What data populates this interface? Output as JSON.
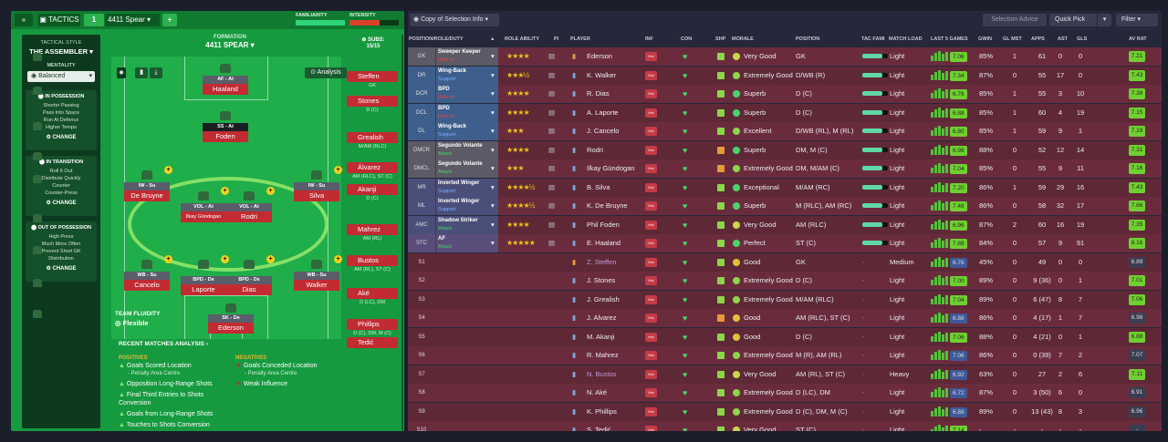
{
  "left": {
    "tactics_label": "TACTICS",
    "slot_number": "1",
    "tactic_name": "4411 Spear",
    "familiarity_label": "FAMILIARITY",
    "intensity_label": "INTENSITY",
    "tactical_style_label": "TACTICAL STYLE",
    "style_name": "THE ASSEMBLER",
    "mentality_label": "MENTALITY",
    "mentality_value": "Balanced",
    "formation_label": "FORMATION",
    "formation_value": "4411 SPEAR",
    "subs_label": "SUBS:",
    "subs_count": "15/15",
    "analysis_button": "Analysis",
    "change_label": "CHANGE",
    "sections": [
      {
        "title": "IN POSSESSION",
        "lines": [
          "Shorter Passing",
          "Pass Into Space",
          "Run At Defence",
          "Higher Tempo"
        ]
      },
      {
        "title": "IN TRANSITION",
        "lines": [
          "Roll It Out",
          "Distribute Quickly",
          "Counter",
          "Counter-Press"
        ]
      },
      {
        "title": "OUT OF POSSESSION",
        "lines": [
          "High Press",
          "Much More Often",
          "Prevent Short GK",
          "Distribution"
        ]
      }
    ],
    "fluidity_label": "TEAM FLUIDITY",
    "fluidity_value": "Flexible",
    "analysis_title": "RECENT MATCHES ANALYSIS",
    "positives_label": "POSITIVES",
    "negatives_label": "NEGATIVES",
    "positives": [
      {
        "text": "Goals Scored Location",
        "sub": "- Penalty Area Centre"
      },
      {
        "text": "Opposition Long-Range Shots",
        "sub": ""
      },
      {
        "text": "Final Third Entries to Shots Conversion",
        "sub": ""
      },
      {
        "text": "Goals from Long-Range Shots",
        "sub": ""
      },
      {
        "text": "Touches to Shots Conversion",
        "sub": ""
      }
    ],
    "negatives": [
      {
        "text": "Goals Conceded Location",
        "sub": "- Penalty Area Centre"
      },
      {
        "text": "Weak Influence",
        "sub": ""
      }
    ],
    "pitch_players": [
      {
        "role": "AF - At",
        "name": "Haaland"
      },
      {
        "role": "SS - At",
        "name": "Foden"
      },
      {
        "role": "IW - Su",
        "name": "De Bruyne"
      },
      {
        "role": "IW - Su",
        "name": "Silva"
      },
      {
        "role": "VOL - At",
        "name": "Ilkay Gündogan"
      },
      {
        "role": "VOL - At",
        "name": "Rodri"
      },
      {
        "role": "WB - Su",
        "name": "Cancelo"
      },
      {
        "role": "BPD - De",
        "name": "Laporte"
      },
      {
        "role": "BPD - De",
        "name": "Dias"
      },
      {
        "role": "WB - Su",
        "name": "Walker"
      },
      {
        "role": "SK - De",
        "name": "Ederson"
      }
    ],
    "subs": [
      {
        "name": "Steffen",
        "pos": "GK"
      },
      {
        "name": "Stones",
        "pos": "D (C)"
      },
      {
        "name": "Grealish",
        "pos": "M/AM (RLC)"
      },
      {
        "name": "Álvarez",
        "pos": "AM (RLC), ST (C)"
      },
      {
        "name": "Akanji",
        "pos": "D (C)"
      },
      {
        "name": "Mahrez",
        "pos": "AM (RL)"
      },
      {
        "name": "Bustos",
        "pos": "AM (RL), ST (C)"
      },
      {
        "name": "Aké",
        "pos": "D (LC), DM"
      },
      {
        "name": "Phillips",
        "pos": "D (C), DM, M (C)"
      },
      {
        "name": "Tedić",
        "pos": ""
      }
    ]
  },
  "right": {
    "view_label": "Copy of Selection Info",
    "selection_advice": "Selection Advice",
    "quick_pick": "Quick Pick",
    "filter": "Filter",
    "headers": [
      "POSITION/ROLE/DUTY",
      "ROLE ABILITY",
      "PI",
      "PLAYER",
      "INF",
      "CON",
      "SHP",
      "MORALE",
      "POSITION",
      "TAC FAMI",
      "MATCH LOAD",
      "LAST 5 GAMES",
      "GWIN",
      "GL MST",
      "APPS",
      "AST",
      "GLS",
      "AV RAT"
    ],
    "rows": [
      {
        "slot": "GK",
        "role": "Sweeper Keeper",
        "duty": "Defend",
        "stars": "★★★★",
        "player": "Ederson",
        "morale": "Very Good",
        "position": "GK",
        "fam": 80,
        "load": "Light",
        "rating": "7.06",
        "gwin": "85%",
        "glmst": "1",
        "apps": "61",
        "ast": "0",
        "gls": "0",
        "avr": "7.21"
      },
      {
        "slot": "DR",
        "role": "Wing-Back",
        "duty": "Support",
        "stars": "★★★½",
        "player": "K. Walker",
        "morale": "Extremely Good",
        "position": "D/WB (R)",
        "fam": 80,
        "load": "Light",
        "rating": "7.34",
        "gwin": "87%",
        "glmst": "0",
        "apps": "55",
        "ast": "17",
        "gls": "0",
        "avr": "7.43"
      },
      {
        "slot": "DCR",
        "role": "BPD",
        "duty": "Defend",
        "stars": "★★★★",
        "player": "R. Dias",
        "morale": "Superb",
        "position": "D (C)",
        "fam": 80,
        "load": "Light",
        "rating": "6.76",
        "gwin": "85%",
        "glmst": "1",
        "apps": "55",
        "ast": "3",
        "gls": "10",
        "avr": "7.38"
      },
      {
        "slot": "DCL",
        "role": "BPD",
        "duty": "Defend",
        "stars": "★★★★",
        "player": "A. Laporte",
        "morale": "Superb",
        "position": "D (C)",
        "fam": 80,
        "load": "Light",
        "rating": "6.88",
        "gwin": "85%",
        "glmst": "1",
        "apps": "60",
        "ast": "4",
        "gls": "19",
        "avr": "7.15"
      },
      {
        "slot": "DL",
        "role": "Wing-Back",
        "duty": "Support",
        "stars": "★★★",
        "player": "J. Cancelo",
        "morale": "Excellent",
        "position": "D/WB (RL), M (RL)",
        "fam": 80,
        "load": "Light",
        "rating": "6.80",
        "gwin": "85%",
        "glmst": "1",
        "apps": "59",
        "ast": "9",
        "gls": "1",
        "avr": "7.19"
      },
      {
        "slot": "DMCR",
        "role": "Segundo Volante",
        "duty": "Attack",
        "stars": "★★★★",
        "player": "Rodri",
        "morale": "Superb",
        "position": "DM, M (C)",
        "fam": 80,
        "load": "Light",
        "rating": "6.98",
        "gwin": "88%",
        "glmst": "0",
        "apps": "52",
        "ast": "12",
        "gls": "14",
        "avr": "7.31"
      },
      {
        "slot": "DMCL",
        "role": "Segundo Volante",
        "duty": "Attack",
        "stars": "★★★",
        "player": "Ilkay Gündogan",
        "morale": "Extremely Good",
        "position": "DM, M/AM (C)",
        "fam": 80,
        "load": "Light",
        "rating": "7.04",
        "gwin": "85%",
        "glmst": "0",
        "apps": "55",
        "ast": "9",
        "gls": "11",
        "avr": "7.16"
      },
      {
        "slot": "MR",
        "role": "Inverted Winger",
        "duty": "Support",
        "stars": "★★★★½",
        "player": "B. Silva",
        "morale": "Exceptional",
        "position": "M/AM (RC)",
        "fam": 80,
        "load": "Light",
        "rating": "7.20",
        "gwin": "86%",
        "glmst": "1",
        "apps": "59",
        "ast": "29",
        "gls": "16",
        "avr": "7.43"
      },
      {
        "slot": "ML",
        "role": "Inverted Winger",
        "duty": "Support",
        "stars": "★★★★½",
        "player": "K. De Bruyne",
        "morale": "Superb",
        "position": "M (RLC), AM (RC)",
        "fam": 80,
        "load": "Light",
        "rating": "7.48",
        "gwin": "86%",
        "glmst": "0",
        "apps": "58",
        "ast": "32",
        "gls": "17",
        "avr": "7.66"
      },
      {
        "slot": "AMC",
        "role": "Shadow Striker",
        "duty": "Attack",
        "stars": "★★★★",
        "player": "Phil Foden",
        "morale": "Very Good",
        "position": "AM (RLC)",
        "fam": 80,
        "load": "Light",
        "rating": "6.96",
        "gwin": "87%",
        "glmst": "2",
        "apps": "60",
        "ast": "16",
        "gls": "19",
        "avr": "7.35"
      },
      {
        "slot": "STC",
        "role": "AF",
        "duty": "Attack",
        "stars": "★★★★★",
        "player": "E. Haaland",
        "morale": "Perfect",
        "position": "ST (C)",
        "fam": 80,
        "load": "Light",
        "rating": "7.88",
        "gwin": "84%",
        "glmst": "0",
        "apps": "57",
        "ast": "9",
        "gls": "91",
        "avr": "8.16"
      },
      {
        "slot": "S1",
        "role": "",
        "duty": "",
        "stars": "",
        "player": "Z. Steffen",
        "morale": "Good",
        "position": "GK",
        "fam": 0,
        "load": "Medium",
        "rating": "6.76",
        "gwin": "45%",
        "glmst": "0",
        "apps": "49",
        "ast": "0",
        "gls": "0",
        "avr": "6.89"
      },
      {
        "slot": "S2",
        "role": "",
        "duty": "",
        "stars": "",
        "player": "J. Stones",
        "morale": "Extremely Good",
        "position": "D (C)",
        "fam": 0,
        "load": "Light",
        "rating": "7.00",
        "gwin": "89%",
        "glmst": "0",
        "apps": "9 (36)",
        "ast": "0",
        "gls": "1",
        "avr": "7.01"
      },
      {
        "slot": "S3",
        "role": "",
        "duty": "",
        "stars": "",
        "player": "J. Grealish",
        "morale": "Extremely Good",
        "position": "M/AM (RLC)",
        "fam": 0,
        "load": "Light",
        "rating": "7.04",
        "gwin": "89%",
        "glmst": "0",
        "apps": "6 (47)",
        "ast": "8",
        "gls": "7",
        "avr": "7.06"
      },
      {
        "slot": "S4",
        "role": "",
        "duty": "",
        "stars": "",
        "player": "J. Alvarez",
        "morale": "Good",
        "position": "AM (RLC), ST (C)",
        "fam": 0,
        "load": "Light",
        "rating": "6.88",
        "gwin": "86%",
        "glmst": "0",
        "apps": "4 (17)",
        "ast": "1",
        "gls": "7",
        "avr": "6.98"
      },
      {
        "slot": "S5",
        "role": "",
        "duty": "",
        "stars": "",
        "player": "M. Akanji",
        "morale": "Good",
        "position": "D (C)",
        "fam": 0,
        "load": "Light",
        "rating": "7.06",
        "gwin": "88%",
        "glmst": "0",
        "apps": "4 (21)",
        "ast": "0",
        "gls": "1",
        "avr": "6.88"
      },
      {
        "slot": "S6",
        "role": "",
        "duty": "",
        "stars": "",
        "player": "R. Mahrez",
        "morale": "Extremely Good",
        "position": "M (R), AM (RL)",
        "fam": 0,
        "load": "Light",
        "rating": "7.06",
        "gwin": "86%",
        "glmst": "0",
        "apps": "0 (39)",
        "ast": "7",
        "gls": "2",
        "avr": "7.07"
      },
      {
        "slot": "S7",
        "role": "",
        "duty": "",
        "stars": "",
        "player": "N. Bustos",
        "morale": "Very Good",
        "position": "AM (RL), ST (C)",
        "fam": 0,
        "load": "Heavy",
        "rating": "6.92",
        "gwin": "63%",
        "glmst": "0",
        "apps": "27",
        "ast": "2",
        "gls": "6",
        "avr": "7.11"
      },
      {
        "slot": "S8",
        "role": "",
        "duty": "",
        "stars": "",
        "player": "N. Aké",
        "morale": "Extremely Good",
        "position": "D (LC), DM",
        "fam": 0,
        "load": "Light",
        "rating": "6.72",
        "gwin": "87%",
        "glmst": "0",
        "apps": "3 (50)",
        "ast": "6",
        "gls": "0",
        "avr": "6.91"
      },
      {
        "slot": "S9",
        "role": "",
        "duty": "",
        "stars": "",
        "player": "K. Phillips",
        "morale": "Extremely Good",
        "position": "D (C), DM, M (C)",
        "fam": 0,
        "load": "Light",
        "rating": "6.88",
        "gwin": "89%",
        "glmst": "0",
        "apps": "13 (43)",
        "ast": "8",
        "gls": "3",
        "avr": "6.96"
      },
      {
        "slot": "S10",
        "role": "",
        "duty": "",
        "stars": "",
        "player": "S. Tedić",
        "morale": "Very Good",
        "position": "ST (C)",
        "fam": 0,
        "load": "Light",
        "rating": "7.14",
        "gwin": "-",
        "glmst": "-",
        "apps": "-",
        "ast": "-",
        "gls": "-",
        "avr": "-"
      }
    ]
  }
}
